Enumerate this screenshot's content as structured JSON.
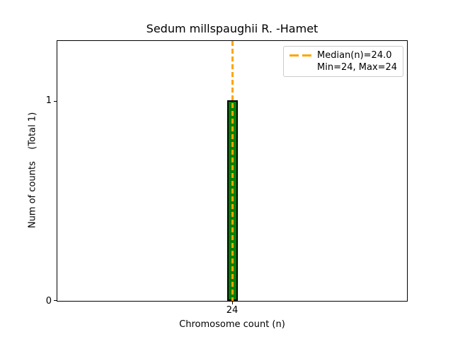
{
  "figure": {
    "title": "Sedum millspaughii R. -Hamet",
    "xlabel": "Chromosome count (n)",
    "ylabel": "Num of counts    (Total 1)",
    "background_color": "#ffffff"
  },
  "axes": {
    "x_tick_labels": [
      "24"
    ],
    "y_tick_labels": [
      "0",
      "1"
    ]
  },
  "legend": {
    "items": [
      {
        "label": "Median(n)=24.0",
        "handle": "dashed-line",
        "handle_color": "#FFA500"
      },
      {
        "label": "Min=24, Max=24",
        "handle": "none"
      }
    ],
    "border_color": "#cccccc",
    "position": "upper right"
  },
  "chart_data": {
    "type": "bar",
    "title": "Sedum millspaughii R. -Hamet",
    "xlabel": "Chromosome count (n)",
    "ylabel": "Num of counts    (Total 1)",
    "categories": [
      24
    ],
    "values": [
      1
    ],
    "total_counts": 1,
    "median_n": 24.0,
    "min_n": 24,
    "max_n": 24,
    "bar_color": "#008000",
    "bar_edge_color": "#000000",
    "median_line_color": "#FFA500",
    "median_line_style": "dashed",
    "x_ticks": [
      24
    ],
    "y_ticks": [
      0,
      1
    ],
    "ylim": [
      0,
      1.3
    ],
    "grid": false,
    "legend_position": "upper right",
    "legend_entries": [
      "Median(n)=24.0",
      "Min=24, Max=24"
    ]
  }
}
